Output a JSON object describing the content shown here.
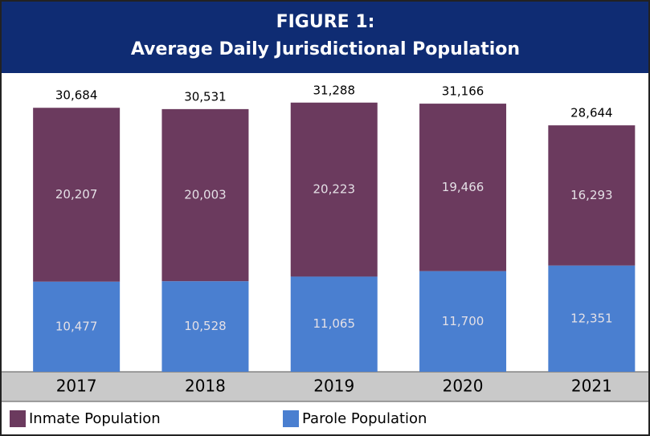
{
  "chart_data": {
    "type": "stacked_bar",
    "title": [
      "FIGURE 1:",
      "Average Daily Jurisdictional Population"
    ],
    "categories": [
      "2017",
      "2018",
      "2019",
      "2020",
      "2021"
    ],
    "series": [
      {
        "name": "Inmate Population",
        "color": "#6b3a5e",
        "values": [
          20207,
          20003,
          20223,
          19466,
          16293
        ],
        "value_labels": [
          "20,207",
          "20,003",
          "20,223",
          "19,466",
          "16,293"
        ]
      },
      {
        "name": "Parole Population",
        "color": "#4a7fd0",
        "values": [
          10477,
          10528,
          11065,
          11700,
          12351
        ],
        "value_labels": [
          "10,477",
          "10,528",
          "11,065",
          "11,700",
          "12,351"
        ]
      }
    ],
    "totals": [
      30684,
      30531,
      31288,
      31166,
      28644
    ],
    "total_labels": [
      "30,684",
      "30,531",
      "31,288",
      "31,166",
      "28,644"
    ],
    "ylim": [
      0,
      35000
    ],
    "grid": false
  }
}
